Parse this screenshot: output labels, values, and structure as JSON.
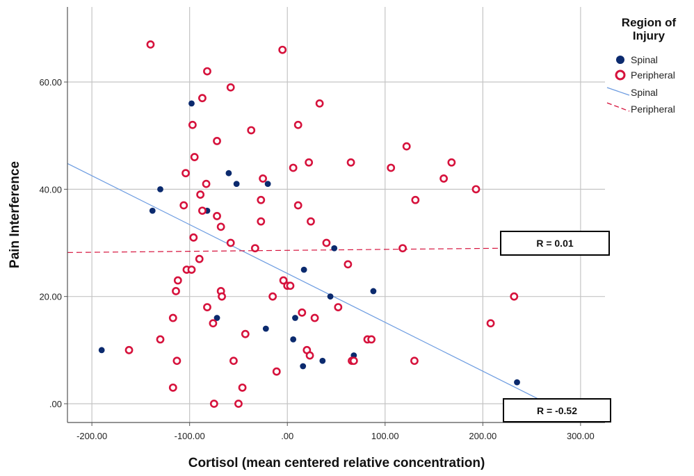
{
  "chart_data": {
    "type": "scatter",
    "title": "",
    "xlabel": "Cortisol (mean centered relative concentration)",
    "ylabel": "Pain Interference",
    "xlim": [
      -225,
      325
    ],
    "ylim": [
      -3.5,
      74
    ],
    "x_ticks": [
      -200,
      -100,
      0,
      100,
      200,
      300
    ],
    "x_tick_labels": [
      "-200.00",
      "-100.00",
      ".00",
      "100.00",
      "200.00",
      "300.00"
    ],
    "y_ticks": [
      0,
      20,
      40,
      60
    ],
    "y_tick_labels": [
      ".00",
      "20.00",
      "40.00",
      "60.00"
    ],
    "grid": true,
    "legend_title": "Region of Injury",
    "legend_title_lines": [
      "Region of",
      "Injury"
    ],
    "legend_position": "top-right, outside plot",
    "series": [
      {
        "name": "Spinal",
        "marker": "filled-circle",
        "color": "#0b2a6e",
        "points": [
          [
            -190,
            10
          ],
          [
            -138,
            36
          ],
          [
            -130,
            40
          ],
          [
            -98,
            56
          ],
          [
            -88,
            57
          ],
          [
            -82,
            36
          ],
          [
            -72,
            16
          ],
          [
            -60,
            43
          ],
          [
            -52,
            41
          ],
          [
            -20,
            41
          ],
          [
            -22,
            14
          ],
          [
            6,
            12
          ],
          [
            8,
            16
          ],
          [
            16,
            7
          ],
          [
            17,
            25
          ],
          [
            36,
            8
          ],
          [
            44,
            20
          ],
          [
            48,
            29
          ],
          [
            68,
            9
          ],
          [
            88,
            21
          ],
          [
            235,
            4
          ]
        ]
      },
      {
        "name": "Peripheral",
        "marker": "open-circle",
        "color": "#d6123c",
        "points": [
          [
            -140,
            67
          ],
          [
            -5,
            66
          ],
          [
            -82,
            62
          ],
          [
            -58,
            59
          ],
          [
            -87,
            57
          ],
          [
            33,
            56
          ],
          [
            -97,
            52
          ],
          [
            -37,
            51
          ],
          [
            11,
            52
          ],
          [
            -72,
            49
          ],
          [
            122,
            48
          ],
          [
            -95,
            46
          ],
          [
            168,
            45
          ],
          [
            22,
            45
          ],
          [
            65,
            45
          ],
          [
            6,
            44
          ],
          [
            106,
            44
          ],
          [
            -104,
            43
          ],
          [
            160,
            42
          ],
          [
            -25,
            42
          ],
          [
            193,
            40
          ],
          [
            -83,
            41
          ],
          [
            -89,
            39
          ],
          [
            -27,
            38
          ],
          [
            131,
            38
          ],
          [
            -106,
            37
          ],
          [
            11,
            37
          ],
          [
            -87,
            36
          ],
          [
            -72,
            35
          ],
          [
            -27,
            34
          ],
          [
            24,
            34
          ],
          [
            -68,
            33
          ],
          [
            -96,
            31
          ],
          [
            -58,
            30
          ],
          [
            -33,
            29
          ],
          [
            40,
            30
          ],
          [
            118,
            29
          ],
          [
            -103,
            25
          ],
          [
            -98,
            25
          ],
          [
            -90,
            27
          ],
          [
            62,
            26
          ],
          [
            -112,
            23
          ],
          [
            -4,
            23
          ],
          [
            0,
            22
          ],
          [
            3,
            22
          ],
          [
            -68,
            21
          ],
          [
            -67,
            20
          ],
          [
            -114,
            21
          ],
          [
            -15,
            20
          ],
          [
            232,
            20
          ],
          [
            -82,
            18
          ],
          [
            15,
            17
          ],
          [
            52,
            18
          ],
          [
            -117,
            16
          ],
          [
            -76,
            15
          ],
          [
            28,
            16
          ],
          [
            208,
            15
          ],
          [
            -130,
            12
          ],
          [
            -43,
            13
          ],
          [
            82,
            12
          ],
          [
            86,
            12
          ],
          [
            20,
            10
          ],
          [
            23,
            9
          ],
          [
            -162,
            10
          ],
          [
            -113,
            8
          ],
          [
            -55,
            8
          ],
          [
            66,
            8
          ],
          [
            68,
            8
          ],
          [
            130,
            8
          ],
          [
            -11,
            6
          ],
          [
            -117,
            3
          ],
          [
            -46,
            3
          ],
          [
            -75,
            0
          ],
          [
            -50,
            0
          ]
        ]
      }
    ],
    "fit_lines": [
      {
        "name": "Spinal",
        "style": "solid",
        "color": "#6a9ae0",
        "x": [
          -225,
          260
        ],
        "y": [
          44.8,
          0.6
        ]
      },
      {
        "name": "Peripheral",
        "style": "dashed",
        "color": "#d6123c",
        "x": [
          -225,
          220
        ],
        "y": [
          28.2,
          29.0
        ]
      }
    ],
    "annotations": [
      {
        "text": "R = 0.01",
        "series": "Peripheral"
      },
      {
        "text": "R = -0.52",
        "series": "Spinal"
      }
    ]
  }
}
